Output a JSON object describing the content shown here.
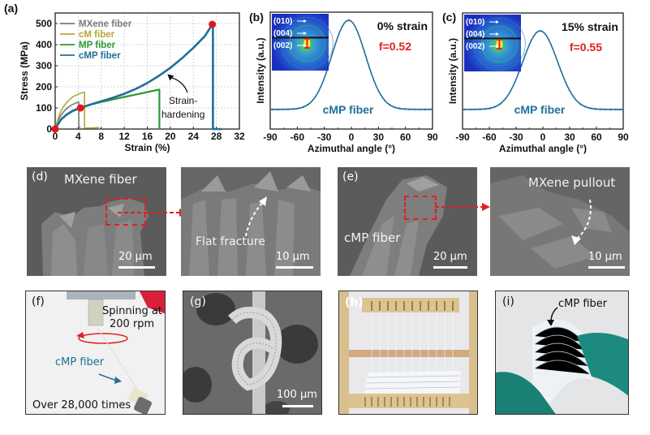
{
  "chart_data": [
    {
      "panel": "(a)",
      "type": "line",
      "title": "",
      "xlabel": "Strain (%)",
      "ylabel": "Stress (MPa)",
      "xlim": [
        0,
        32
      ],
      "ylim": [
        0,
        550
      ],
      "xticks": [
        0,
        4,
        8,
        12,
        16,
        20,
        24,
        28,
        32
      ],
      "yticks": [
        0,
        100,
        200,
        300,
        400,
        500
      ],
      "grid": true,
      "legend_position": "top-left",
      "series": [
        {
          "name": "MXene fiber",
          "color": "#7a7a7a",
          "x": [
            0,
            0.5,
            1,
            1.5,
            2,
            2.5,
            3,
            3.5,
            4,
            4.1,
            4.1,
            4.3
          ],
          "y": [
            0,
            40,
            65,
            83,
            97,
            108,
            116,
            122,
            127,
            128,
            20,
            5
          ]
        },
        {
          "name": "cM fiber",
          "color": "#b5a832",
          "x": [
            0,
            0.5,
            1,
            1.5,
            2,
            2.5,
            3,
            3.5,
            4,
            4.5,
            5,
            5.1,
            5.1,
            6,
            7.5,
            7.6
          ],
          "y": [
            0,
            50,
            85,
            108,
            126,
            140,
            151,
            159,
            165,
            170,
            175,
            175,
            5,
            5,
            7,
            0
          ]
        },
        {
          "name": "MP fiber",
          "color": "#2a9a32",
          "x": [
            0,
            1,
            2,
            3,
            4,
            5,
            6,
            8,
            10,
            12,
            14,
            16,
            18,
            18.1,
            18.1
          ],
          "y": [
            0,
            45,
            70,
            87,
            98,
            107,
            115,
            128,
            140,
            152,
            163,
            175,
            187,
            187,
            0
          ]
        },
        {
          "name": "cMP fiber",
          "color": "#1f6f9a",
          "x": [
            0,
            1,
            2,
            3,
            4.4,
            6,
            8,
            10,
            12,
            14,
            16,
            18,
            20,
            22,
            24,
            26,
            27.3,
            27.4,
            27.4,
            29
          ],
          "y": [
            0,
            45,
            68,
            85,
            100,
            115,
            132,
            148,
            167,
            190,
            218,
            252,
            290,
            335,
            385,
            440,
            496,
            496,
            0,
            0
          ]
        }
      ],
      "markers": [
        {
          "x": 0,
          "y": 0,
          "color": "#e01818"
        },
        {
          "x": 4.4,
          "y": 100,
          "color": "#e01818"
        },
        {
          "x": 27.3,
          "y": 496,
          "color": "#e01818"
        }
      ],
      "annotations": [
        {
          "text_line1": "Strain-",
          "text_line2": "hardening",
          "points_to": {
            "x": 19.5,
            "y": 260
          }
        }
      ]
    },
    {
      "panel": "(b)",
      "type": "line",
      "xlabel": "Azimuthal angle (°)",
      "ylabel": "Intensity (a.u.)",
      "xlim": [
        -90,
        90
      ],
      "xticks": [
        -90,
        -60,
        -30,
        0,
        30,
        60,
        90
      ],
      "series": [
        {
          "name": "cMP fiber",
          "color": "#1f6f9a",
          "peak_center": -3,
          "peak_fwhm": 44,
          "baseline": 0.1,
          "peak": 1.0
        }
      ],
      "annotations": [
        {
          "text": "0% strain",
          "color": "#111111"
        },
        {
          "text": "f=0.52",
          "color": "#e02020"
        },
        {
          "text": "cMP fiber",
          "color": "#1f6f9a"
        }
      ],
      "inset": {
        "labels": [
          "(010)",
          "(004)",
          "(002)"
        ]
      }
    },
    {
      "panel": "(c)",
      "type": "line",
      "xlabel": "Azimuthal angle (°)",
      "ylabel": "Intensity (a.u.)",
      "xlim": [
        -90,
        90
      ],
      "xticks": [
        -90,
        -60,
        -30,
        0,
        30,
        60,
        90
      ],
      "series": [
        {
          "name": "cMP fiber",
          "color": "#1f6f9a",
          "peak_center": -3,
          "peak_fwhm": 46,
          "baseline": 0.1,
          "peak": 0.9
        }
      ],
      "annotations": [
        {
          "text": "15% strain",
          "color": "#111111"
        },
        {
          "text": "f=0.55",
          "color": "#e02020"
        },
        {
          "text": "cMP fiber",
          "color": "#1f6f9a"
        }
      ],
      "inset": {
        "labels": [
          "(010)",
          "(004)",
          "(002)"
        ]
      }
    }
  ],
  "panel_a": {
    "label": "(a)"
  },
  "panel_b": {
    "label": "(b)"
  },
  "panel_c": {
    "label": "(c)"
  },
  "panel_d": {
    "label": "(d)",
    "title": "MXene fiber",
    "scale_left": "20 µm",
    "zoom_text": "Flat fracture",
    "scale_right": "10 µm"
  },
  "panel_e": {
    "label": "(e)",
    "title": "cMP fiber",
    "zoom_text": "MXene pullout",
    "scale_left": "20 µm",
    "scale_right": "10 µm"
  },
  "panel_f": {
    "label": "(f)",
    "spin_line1": "Spinning at",
    "spin_line2": "200 rpm",
    "fiber": "cMP fiber",
    "count": "Over 28,000 times"
  },
  "panel_g": {
    "label": "(g)",
    "scale": "100 µm"
  },
  "panel_h": {
    "label": "(h)"
  },
  "panel_i": {
    "label": "(i)",
    "fiber": "cMP fiber"
  },
  "colors": {
    "accent_red": "#e02020",
    "cmp_blue": "#1f6f9a",
    "sem_gray": "#5b5b5b"
  }
}
